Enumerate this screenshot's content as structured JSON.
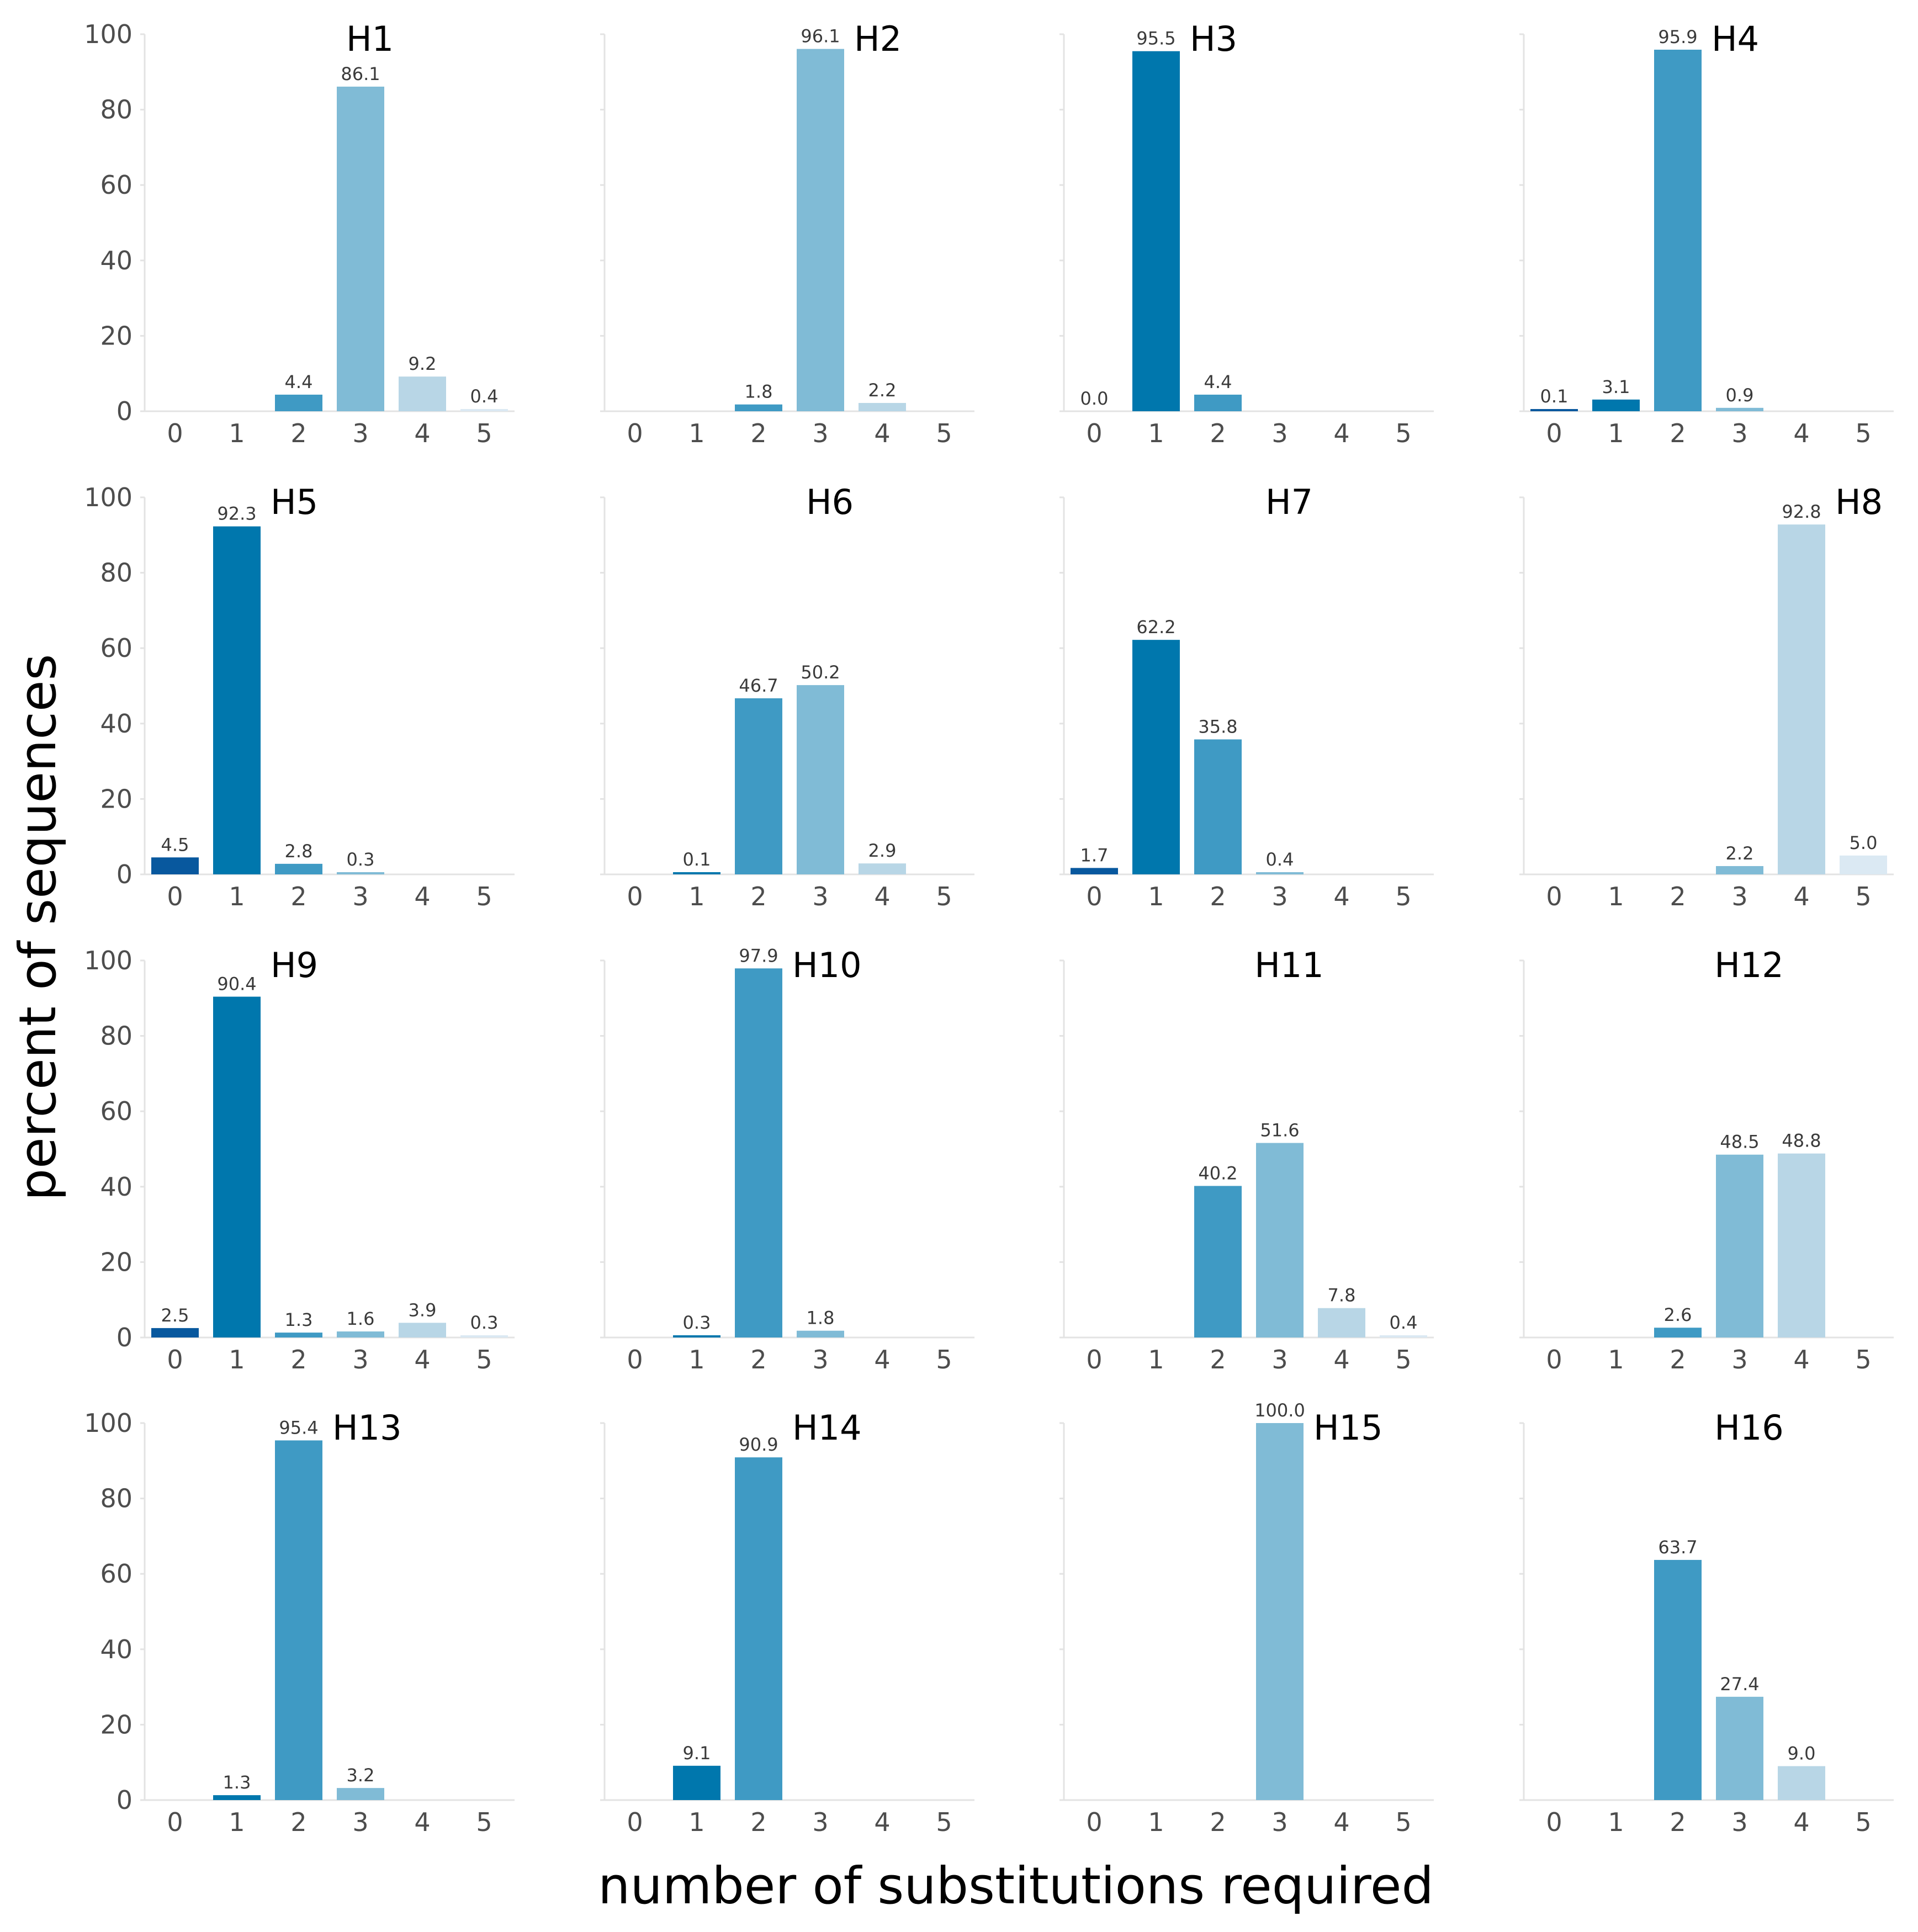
{
  "chart_data": {
    "type": "bar",
    "layout": "4x4 small multiples",
    "xlabel": "number of substitutions required",
    "ylabel": "percent of sequences",
    "categories": [
      "0",
      "1",
      "2",
      "3",
      "4",
      "5"
    ],
    "ylim": [
      0,
      100
    ],
    "yticks": [
      "0",
      "20",
      "40",
      "60",
      "80",
      "100"
    ],
    "colors": [
      "#08589e",
      "#0077ad",
      "#3f9ac4",
      "#80bbd6",
      "#b8d6e6",
      "#dbe9f3"
    ],
    "panels": [
      {
        "title": "H1",
        "values": [
          null,
          null,
          4.4,
          86.1,
          9.2,
          0.4
        ],
        "labels": [
          "",
          "",
          "4.4",
          "86.1",
          "9.2",
          "0.4"
        ]
      },
      {
        "title": "H2",
        "values": [
          null,
          null,
          1.8,
          96.1,
          2.2,
          null
        ],
        "labels": [
          "",
          "",
          "1.8",
          "96.1",
          "2.2",
          ""
        ]
      },
      {
        "title": "H3",
        "values": [
          0.0,
          95.5,
          4.4,
          null,
          null,
          null
        ],
        "labels": [
          "0.0",
          "95.5",
          "4.4",
          "",
          "",
          ""
        ]
      },
      {
        "title": "H4",
        "values": [
          0.1,
          3.1,
          95.9,
          0.9,
          null,
          null
        ],
        "labels": [
          "0.1",
          "3.1",
          "95.9",
          "0.9",
          "",
          ""
        ]
      },
      {
        "title": "H5",
        "values": [
          4.5,
          92.3,
          2.8,
          0.3,
          null,
          null
        ],
        "labels": [
          "4.5",
          "92.3",
          "2.8",
          "0.3",
          "",
          ""
        ]
      },
      {
        "title": "H6",
        "values": [
          null,
          0.1,
          46.7,
          50.2,
          2.9,
          null
        ],
        "labels": [
          "",
          "0.1",
          "46.7",
          "50.2",
          "2.9",
          ""
        ]
      },
      {
        "title": "H7",
        "values": [
          1.7,
          62.2,
          35.8,
          0.4,
          null,
          null
        ],
        "labels": [
          "1.7",
          "62.2",
          "35.8",
          "0.4",
          "",
          ""
        ]
      },
      {
        "title": "H8",
        "values": [
          null,
          null,
          null,
          2.2,
          92.8,
          5.0
        ],
        "labels": [
          "",
          "",
          "",
          "2.2",
          "92.8",
          "5.0"
        ]
      },
      {
        "title": "H9",
        "values": [
          2.5,
          90.4,
          1.3,
          1.6,
          3.9,
          0.3
        ],
        "labels": [
          "2.5",
          "90.4",
          "1.3",
          "1.6",
          "3.9",
          "0.3"
        ]
      },
      {
        "title": "H10",
        "values": [
          null,
          0.3,
          97.9,
          1.8,
          null,
          null
        ],
        "labels": [
          "",
          "0.3",
          "97.9",
          "1.8",
          "",
          ""
        ]
      },
      {
        "title": "H11",
        "values": [
          null,
          null,
          40.2,
          51.6,
          7.8,
          0.4
        ],
        "labels": [
          "",
          "",
          "40.2",
          "51.6",
          "7.8",
          "0.4"
        ]
      },
      {
        "title": "H12",
        "values": [
          null,
          null,
          2.6,
          48.5,
          48.8,
          null
        ],
        "labels": [
          "",
          "",
          "2.6",
          "48.5",
          "48.8",
          ""
        ]
      },
      {
        "title": "H13",
        "values": [
          null,
          1.3,
          95.4,
          3.2,
          null,
          null
        ],
        "labels": [
          "",
          "1.3",
          "95.4",
          "3.2",
          "",
          ""
        ]
      },
      {
        "title": "H14",
        "values": [
          null,
          9.1,
          90.9,
          null,
          null,
          null
        ],
        "labels": [
          "",
          "9.1",
          "90.9",
          "",
          "",
          ""
        ]
      },
      {
        "title": "H15",
        "values": [
          null,
          null,
          null,
          100.0,
          null,
          null
        ],
        "labels": [
          "",
          "",
          "",
          "100.0",
          "",
          ""
        ]
      },
      {
        "title": "H16",
        "values": [
          null,
          null,
          63.7,
          27.4,
          9.0,
          null
        ],
        "labels": [
          "",
          "",
          "63.7",
          "27.4",
          "9.0",
          ""
        ]
      }
    ]
  }
}
